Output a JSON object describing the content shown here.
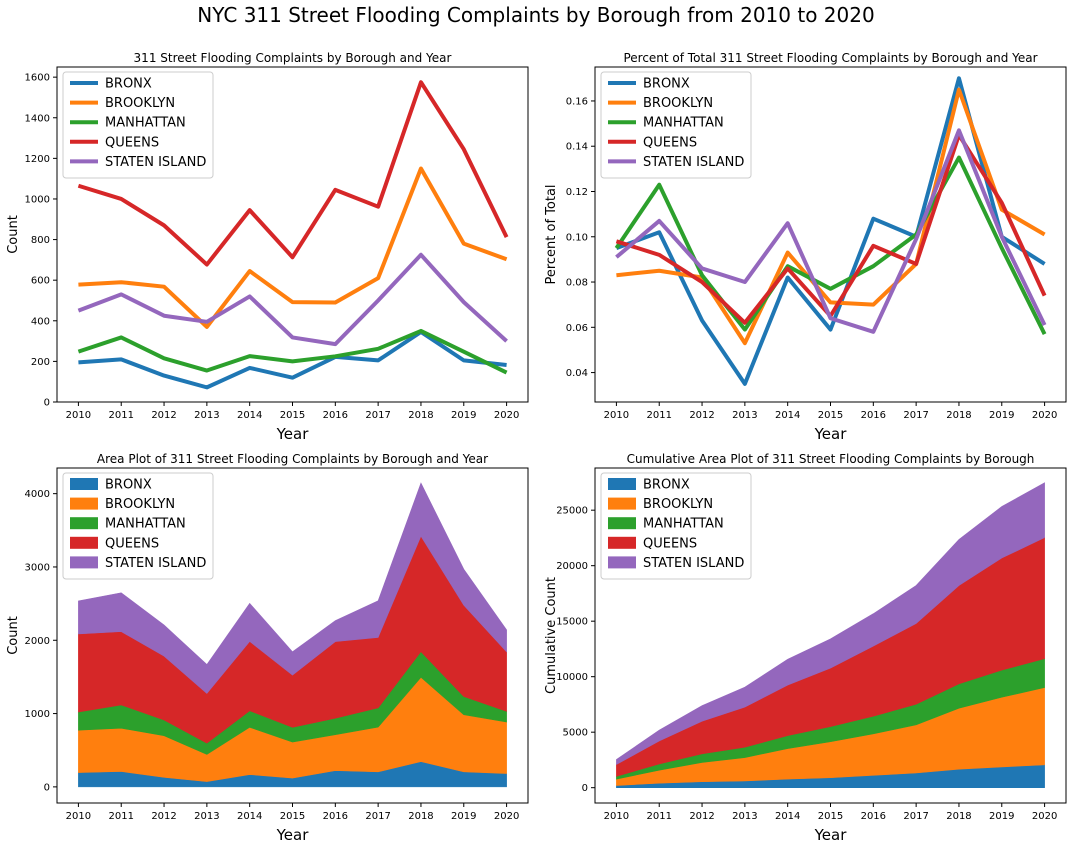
{
  "figure": {
    "title": "NYC 311 Street Flooding Complaints by Borough from 2010 to 2020"
  },
  "colors": {
    "BRONX": "#1f77b4",
    "BROOKLYN": "#ff7f0e",
    "MANHATTAN": "#2ca02c",
    "QUEENS": "#d62728",
    "STATEN ISLAND": "#9467bd"
  },
  "chart_data": [
    {
      "type": "line",
      "title": "311 Street Flooding Complaints by Borough and Year",
      "xlabel": "Year",
      "ylabel": "Count",
      "x": [
        2010,
        2011,
        2012,
        2013,
        2014,
        2015,
        2016,
        2017,
        2018,
        2019,
        2020
      ],
      "ylim": [
        0,
        1650
      ],
      "yticks": [
        0,
        200,
        400,
        600,
        800,
        1000,
        1200,
        1400,
        1600
      ],
      "legend": "top-left",
      "series": [
        {
          "name": "BRONX",
          "values": [
            195,
            210,
            130,
            72,
            168,
            120,
            222,
            205,
            345,
            205,
            182
          ]
        },
        {
          "name": "BROOKLYN",
          "values": [
            578,
            590,
            568,
            370,
            645,
            492,
            490,
            610,
            1150,
            780,
            703
          ]
        },
        {
          "name": "MANHATTAN",
          "values": [
            248,
            318,
            215,
            155,
            226,
            200,
            225,
            262,
            350,
            248,
            145
          ]
        },
        {
          "name": "QUEENS",
          "values": [
            1065,
            1000,
            870,
            677,
            945,
            713,
            1045,
            962,
            1575,
            1245,
            812
          ]
        },
        {
          "name": "STATEN ISLAND",
          "values": [
            450,
            530,
            425,
            395,
            520,
            318,
            285,
            500,
            725,
            492,
            300
          ]
        }
      ]
    },
    {
      "type": "line",
      "title": "Percent of Total 311 Street Flooding Complaints by Borough and Year",
      "xlabel": "Year",
      "ylabel": "Percent of Total",
      "x": [
        2010,
        2011,
        2012,
        2013,
        2014,
        2015,
        2016,
        2017,
        2018,
        2019,
        2020
      ],
      "ylim": [
        0.027,
        0.175
      ],
      "yticks": [
        0.04,
        0.06,
        0.08,
        0.1,
        0.12,
        0.14,
        0.16
      ],
      "ytick_labels": [
        "0.04",
        "0.06",
        "0.08",
        "0.10",
        "0.12",
        "0.14",
        "0.16"
      ],
      "legend": "top-left",
      "series": [
        {
          "name": "BRONX",
          "values": [
            0.095,
            0.102,
            0.063,
            0.035,
            0.082,
            0.059,
            0.108,
            0.1,
            0.17,
            0.1,
            0.088
          ]
        },
        {
          "name": "BROOKLYN",
          "values": [
            0.083,
            0.085,
            0.082,
            0.053,
            0.093,
            0.071,
            0.07,
            0.088,
            0.165,
            0.112,
            0.101
          ]
        },
        {
          "name": "MANHATTAN",
          "values": [
            0.095,
            0.123,
            0.083,
            0.059,
            0.087,
            0.077,
            0.087,
            0.101,
            0.135,
            0.095,
            0.057
          ]
        },
        {
          "name": "QUEENS",
          "values": [
            0.098,
            0.092,
            0.08,
            0.062,
            0.086,
            0.065,
            0.096,
            0.088,
            0.145,
            0.115,
            0.074
          ]
        },
        {
          "name": "STATEN ISLAND",
          "values": [
            0.091,
            0.107,
            0.086,
            0.08,
            0.106,
            0.064,
            0.058,
            0.099,
            0.147,
            0.1,
            0.061
          ]
        }
      ]
    },
    {
      "type": "area",
      "stacked": true,
      "title": "Area Plot of 311 Street Flooding Complaints by Borough and Year",
      "xlabel": "Year",
      "ylabel": "Count",
      "x": [
        2010,
        2011,
        2012,
        2013,
        2014,
        2015,
        2016,
        2017,
        2018,
        2019,
        2020
      ],
      "ylim": [
        -220,
        4350
      ],
      "yticks": [
        0,
        1000,
        2000,
        3000,
        4000
      ],
      "legend": "top-left",
      "series": [
        {
          "name": "BRONX",
          "values": [
            195,
            210,
            130,
            72,
            168,
            120,
            222,
            205,
            345,
            205,
            182
          ]
        },
        {
          "name": "BROOKLYN",
          "values": [
            578,
            590,
            568,
            370,
            645,
            492,
            490,
            610,
            1150,
            780,
            703
          ]
        },
        {
          "name": "MANHATTAN",
          "values": [
            248,
            318,
            215,
            155,
            226,
            200,
            225,
            262,
            350,
            248,
            145
          ]
        },
        {
          "name": "QUEENS",
          "values": [
            1065,
            1000,
            870,
            677,
            945,
            713,
            1045,
            962,
            1575,
            1245,
            812
          ]
        },
        {
          "name": "STATEN ISLAND",
          "values": [
            450,
            530,
            425,
            395,
            520,
            318,
            285,
            500,
            725,
            492,
            300
          ]
        }
      ]
    },
    {
      "type": "area",
      "stacked": true,
      "title": "Cumulative Area Plot of 311 Street Flooding Complaints by Borough",
      "xlabel": "Year",
      "ylabel": "Cumulative Count",
      "x": [
        2010,
        2011,
        2012,
        2013,
        2014,
        2015,
        2016,
        2017,
        2018,
        2019,
        2020
      ],
      "ylim": [
        -1380,
        28800
      ],
      "yticks": [
        0,
        5000,
        10000,
        15000,
        20000,
        25000
      ],
      "legend": "top-left",
      "series": [
        {
          "name": "BRONX",
          "values": [
            195,
            405,
            535,
            607,
            775,
            895,
            1117,
            1322,
            1667,
            1872,
            2054
          ]
        },
        {
          "name": "BROOKLYN",
          "values": [
            578,
            1168,
            1736,
            2106,
            2751,
            3243,
            3733,
            4343,
            5493,
            6273,
            6976
          ]
        },
        {
          "name": "MANHATTAN",
          "values": [
            248,
            566,
            781,
            936,
            1162,
            1362,
            1587,
            1849,
            2199,
            2447,
            2592
          ]
        },
        {
          "name": "QUEENS",
          "values": [
            1065,
            2065,
            2935,
            3612,
            4557,
            5270,
            6315,
            7277,
            8852,
            10097,
            10909
          ]
        },
        {
          "name": "STATEN ISLAND",
          "values": [
            450,
            980,
            1405,
            1800,
            2320,
            2638,
            2923,
            3423,
            4148,
            4640,
            4940
          ]
        }
      ]
    }
  ]
}
